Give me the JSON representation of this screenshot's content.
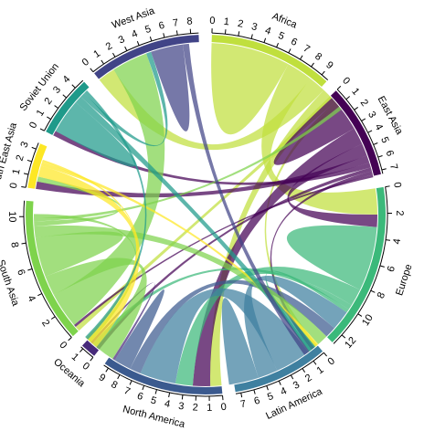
{
  "chart_data": {
    "type": "chord",
    "title": "",
    "regions": [
      {
        "name": "Africa",
        "total": 9.6,
        "color": "#c0df3d"
      },
      {
        "name": "East Asia",
        "total": 7.3,
        "color": "#440154"
      },
      {
        "name": "Europe",
        "total": 12.9,
        "color": "#3bb97a"
      },
      {
        "name": "Latin America",
        "total": 7.4,
        "color": "#3f80a0"
      },
      {
        "name": "North America",
        "total": 9.4,
        "color": "#3b5a8f"
      },
      {
        "name": "Oceania",
        "total": 1.2,
        "color": "#472a7a"
      },
      {
        "name": "South Asia",
        "total": 11.2,
        "color": "#7ed34c"
      },
      {
        "name": "South East Asia",
        "total": 3.5,
        "color": "#fde725"
      },
      {
        "name": "Soviet Union",
        "total": 4.8,
        "color": "#1f9a8a"
      },
      {
        "name": "West Asia",
        "total": 8.6,
        "color": "#414487"
      }
    ],
    "flows": [
      {
        "source": "Africa",
        "target": "Africa",
        "value": 3.2
      },
      {
        "source": "Africa",
        "target": "Europe",
        "value": 2.1
      },
      {
        "source": "Africa",
        "target": "West Asia",
        "value": 1.4
      },
      {
        "source": "Africa",
        "target": "North America",
        "value": 0.9
      },
      {
        "source": "Africa",
        "target": "South Asia",
        "value": 0.4
      },
      {
        "source": "Africa",
        "target": "Latin America",
        "value": 0.3
      },
      {
        "source": "Africa",
        "target": "East Asia",
        "value": 0.2
      },
      {
        "source": "East Asia",
        "target": "East Asia",
        "value": 1.5
      },
      {
        "source": "East Asia",
        "target": "North America",
        "value": 1.4
      },
      {
        "source": "East Asia",
        "target": "Europe",
        "value": 1.0
      },
      {
        "source": "East Asia",
        "target": "South East Asia",
        "value": 0.6
      },
      {
        "source": "East Asia",
        "target": "Soviet Union",
        "value": 0.4
      },
      {
        "source": "East Asia",
        "target": "Oceania",
        "value": 0.3
      },
      {
        "source": "East Asia",
        "target": "Latin America",
        "value": 0.3
      },
      {
        "source": "East Asia",
        "target": "South Asia",
        "value": 0.2
      },
      {
        "source": "Europe",
        "target": "Europe",
        "value": 2.6
      },
      {
        "source": "Europe",
        "target": "North America",
        "value": 1.4
      },
      {
        "source": "Europe",
        "target": "Oceania",
        "value": 0.4
      },
      {
        "source": "Europe",
        "target": "Latin America",
        "value": 0.3
      },
      {
        "source": "Latin America",
        "target": "North America",
        "value": 2.9
      },
      {
        "source": "Latin America",
        "target": "Europe",
        "value": 1.6
      },
      {
        "source": "Latin America",
        "target": "Latin America",
        "value": 1.2
      },
      {
        "source": "North America",
        "target": "Europe",
        "value": 0.9
      },
      {
        "source": "North America",
        "target": "North America",
        "value": 0.7
      },
      {
        "source": "Oceania",
        "target": "North America",
        "value": 0.2
      },
      {
        "source": "South Asia",
        "target": "West Asia",
        "value": 2.9
      },
      {
        "source": "South Asia",
        "target": "North America",
        "value": 1.6
      },
      {
        "source": "South Asia",
        "target": "South Asia",
        "value": 1.6
      },
      {
        "source": "South Asia",
        "target": "Europe",
        "value": 0.9
      },
      {
        "source": "South Asia",
        "target": "South East Asia",
        "value": 0.4
      },
      {
        "source": "South Asia",
        "target": "Africa",
        "value": 0.3
      },
      {
        "source": "South Asia",
        "target": "Oceania",
        "value": 0.3
      },
      {
        "source": "South East Asia",
        "target": "North America",
        "value": 0.9
      },
      {
        "source": "South East Asia",
        "target": "Europe",
        "value": 0.3
      },
      {
        "source": "South East Asia",
        "target": "Oceania",
        "value": 0.2
      },
      {
        "source": "Soviet Union",
        "target": "Soviet Union",
        "value": 1.4
      },
      {
        "source": "Soviet Union",
        "target": "Europe",
        "value": 0.6
      },
      {
        "source": "Soviet Union",
        "target": "West Asia",
        "value": 0.4
      },
      {
        "source": "Soviet Union",
        "target": "North America",
        "value": 0.3
      },
      {
        "source": "West Asia",
        "target": "West Asia",
        "value": 1.3
      },
      {
        "source": "West Asia",
        "target": "Europe",
        "value": 0.5
      }
    ]
  }
}
